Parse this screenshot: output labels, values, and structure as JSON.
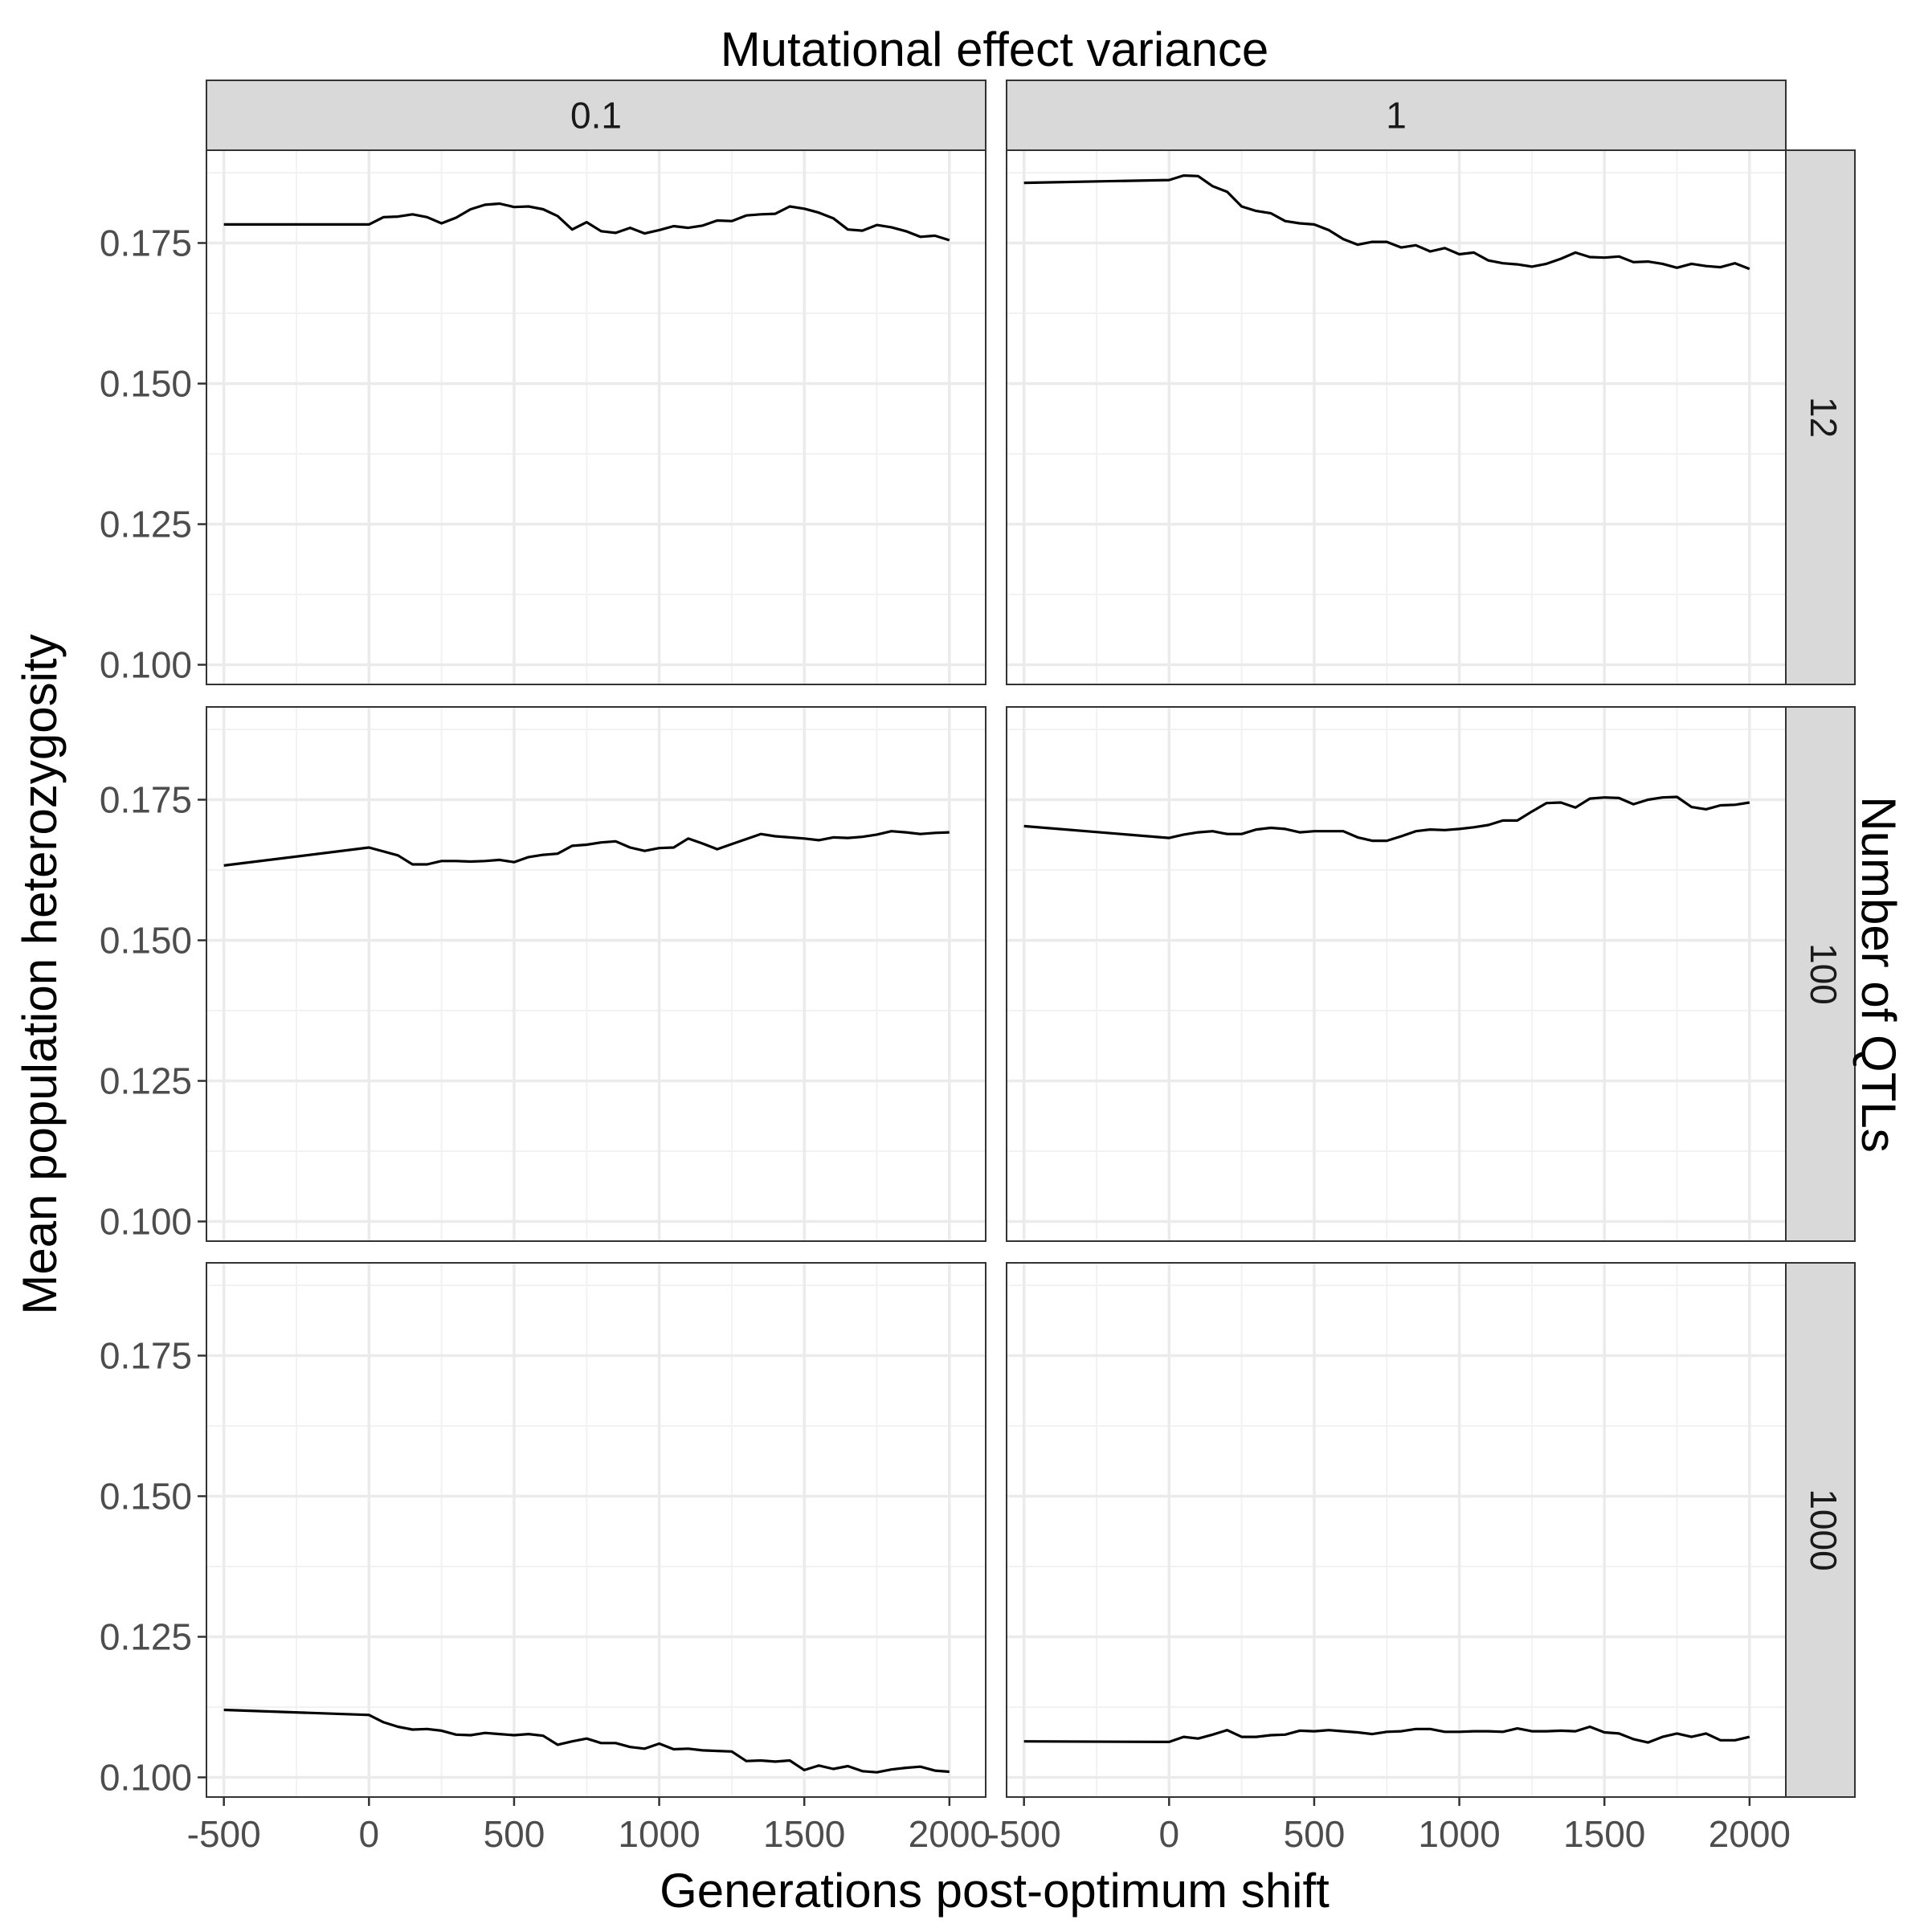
{
  "chart_data": {
    "type": "line",
    "title": "",
    "col_facet_title": "Mutational effect variance",
    "row_facet_title": "Number of QTLs",
    "xlabel": "Generations post-optimum shift",
    "ylabel": "Mean population heterozygosity",
    "col_labels": [
      "0.1",
      "1"
    ],
    "row_labels": [
      "12",
      "100",
      "1000"
    ],
    "xlim": [
      -560,
      2125
    ],
    "ylim": [
      0.0965,
      0.1915
    ],
    "x_ticks": [
      -500,
      0,
      500,
      1000,
      1500,
      2000
    ],
    "x_tick_labels": [
      "-500",
      "0",
      "500",
      "1000",
      "1500",
      "2000"
    ],
    "y_ticks": [
      0.1,
      0.125,
      0.15,
      0.175
    ],
    "y_tick_labels": [
      "0.100",
      "0.125",
      "0.150",
      "0.175"
    ],
    "grid": true,
    "line_color": "#000000",
    "panels": [
      {
        "row": 0,
        "col": 0,
        "x": [
          -500,
          0,
          50,
          100,
          150,
          200,
          250,
          300,
          350,
          400,
          450,
          500,
          550,
          600,
          650,
          700,
          750,
          800,
          850,
          900,
          950,
          1000,
          1050,
          1100,
          1150,
          1200,
          1250,
          1300,
          1350,
          1400,
          1450,
          1500,
          1550,
          1600,
          1650,
          1700,
          1750,
          1800,
          1850,
          1900,
          1950,
          2000
        ],
        "y": [
          0.1783,
          0.1783,
          0.1796,
          0.1797,
          0.1801,
          0.1796,
          0.1785,
          0.1795,
          0.181,
          0.1818,
          0.182,
          0.1814,
          0.1815,
          0.181,
          0.1798,
          0.1774,
          0.1787,
          0.1771,
          0.1768,
          0.1777,
          0.1767,
          0.1773,
          0.178,
          0.1777,
          0.1781,
          0.179,
          0.1789,
          0.1799,
          0.1801,
          0.1802,
          0.1815,
          0.1811,
          0.1804,
          0.1794,
          0.1774,
          0.1772,
          0.1782,
          0.1778,
          0.1771,
          0.1761,
          0.1763,
          0.1755
        ]
      },
      {
        "row": 0,
        "col": 1,
        "x": [
          -500,
          0,
          50,
          100,
          150,
          200,
          250,
          300,
          350,
          400,
          450,
          500,
          550,
          600,
          650,
          700,
          750,
          800,
          850,
          900,
          950,
          1000,
          1050,
          1100,
          1150,
          1200,
          1250,
          1300,
          1350,
          1400,
          1450,
          1500,
          1550,
          1600,
          1650,
          1700,
          1750,
          1800,
          1850,
          1900,
          1950,
          2000
        ],
        "y": [
          0.1857,
          0.1862,
          0.187,
          0.1869,
          0.1851,
          0.1841,
          0.1815,
          0.1807,
          0.1803,
          0.1789,
          0.1785,
          0.1783,
          0.1773,
          0.1757,
          0.1747,
          0.1752,
          0.1752,
          0.1742,
          0.1746,
          0.1735,
          0.1741,
          0.173,
          0.1733,
          0.1719,
          0.1714,
          0.1712,
          0.1708,
          0.1713,
          0.1722,
          0.1733,
          0.1725,
          0.1724,
          0.1726,
          0.1716,
          0.1717,
          0.1713,
          0.1706,
          0.1713,
          0.1709,
          0.1707,
          0.1714,
          0.1704
        ]
      },
      {
        "row": 1,
        "col": 0,
        "x": [
          -500,
          0,
          100,
          150,
          200,
          250,
          300,
          350,
          400,
          450,
          500,
          550,
          600,
          650,
          700,
          750,
          800,
          850,
          900,
          950,
          1000,
          1050,
          1100,
          1150,
          1200,
          1250,
          1300,
          1350,
          1400,
          1450,
          1500,
          1550,
          1600,
          1650,
          1700,
          1750,
          1800,
          1850,
          1900,
          1950,
          2000
        ],
        "y": [
          0.1633,
          0.1665,
          0.1651,
          0.1635,
          0.1635,
          0.1641,
          0.1641,
          0.164,
          0.1641,
          0.1643,
          0.1639,
          0.1648,
          0.1652,
          0.1654,
          0.1668,
          0.167,
          0.1674,
          0.1676,
          0.1665,
          0.1659,
          0.1664,
          0.1665,
          0.1681,
          0.1672,
          0.1662,
          0.1671,
          0.168,
          0.1689,
          0.1685,
          0.1683,
          0.1681,
          0.1678,
          0.1683,
          0.1682,
          0.1684,
          0.1688,
          0.1694,
          0.1692,
          0.1689,
          0.1691,
          0.1692
        ]
      },
      {
        "row": 1,
        "col": 1,
        "x": [
          -500,
          0,
          50,
          100,
          150,
          200,
          250,
          300,
          350,
          400,
          450,
          500,
          550,
          600,
          650,
          700,
          750,
          800,
          850,
          900,
          950,
          1000,
          1050,
          1100,
          1150,
          1200,
          1250,
          1300,
          1350,
          1400,
          1450,
          1500,
          1550,
          1600,
          1650,
          1700,
          1750,
          1800,
          1850,
          1900,
          1950,
          2000
        ],
        "y": [
          0.1703,
          0.1682,
          0.1688,
          0.1692,
          0.1694,
          0.1689,
          0.1689,
          0.1697,
          0.17,
          0.1698,
          0.1692,
          0.1694,
          0.1694,
          0.1694,
          0.1683,
          0.1677,
          0.1677,
          0.1685,
          0.1694,
          0.1697,
          0.1696,
          0.1698,
          0.1701,
          0.1705,
          0.1713,
          0.1713,
          0.1729,
          0.1744,
          0.1745,
          0.1736,
          0.1752,
          0.1754,
          0.1753,
          0.1742,
          0.175,
          0.1754,
          0.1755,
          0.1737,
          0.1733,
          0.174,
          0.1741,
          0.1745
        ]
      },
      {
        "row": 2,
        "col": 0,
        "x": [
          -500,
          0,
          50,
          100,
          150,
          200,
          250,
          300,
          350,
          400,
          450,
          500,
          550,
          600,
          650,
          700,
          750,
          800,
          850,
          900,
          950,
          1000,
          1050,
          1100,
          1150,
          1200,
          1250,
          1300,
          1350,
          1400,
          1450,
          1500,
          1550,
          1600,
          1650,
          1700,
          1750,
          1800,
          1850,
          1900,
          1950,
          2000
        ],
        "y": [
          0.112,
          0.1111,
          0.1098,
          0.109,
          0.1085,
          0.1086,
          0.1083,
          0.1076,
          0.1075,
          0.1079,
          0.1077,
          0.1075,
          0.1077,
          0.1074,
          0.1058,
          0.1064,
          0.1069,
          0.1061,
          0.1061,
          0.1054,
          0.1051,
          0.106,
          0.105,
          0.1051,
          0.1048,
          0.1047,
          0.1046,
          0.1029,
          0.103,
          0.1028,
          0.103,
          0.1013,
          0.1021,
          0.1015,
          0.102,
          0.1011,
          0.1009,
          0.1014,
          0.1017,
          0.1019,
          0.1012,
          0.101
        ]
      },
      {
        "row": 2,
        "col": 1,
        "x": [
          -500,
          0,
          50,
          100,
          150,
          200,
          250,
          300,
          350,
          400,
          450,
          500,
          550,
          600,
          650,
          700,
          750,
          800,
          850,
          900,
          950,
          1000,
          1050,
          1100,
          1150,
          1200,
          1250,
          1300,
          1350,
          1400,
          1450,
          1500,
          1550,
          1600,
          1650,
          1700,
          1750,
          1800,
          1850,
          1900,
          1950,
          2000
        ],
        "y": [
          0.1064,
          0.1063,
          0.1072,
          0.1069,
          0.1076,
          0.1084,
          0.1072,
          0.1072,
          0.1075,
          0.1076,
          0.1083,
          0.1082,
          0.1084,
          0.1082,
          0.108,
          0.1077,
          0.1081,
          0.1082,
          0.1086,
          0.1086,
          0.1081,
          0.1081,
          0.1082,
          0.1082,
          0.1081,
          0.1087,
          0.1082,
          0.1082,
          0.1083,
          0.1082,
          0.109,
          0.108,
          0.1078,
          0.1068,
          0.1062,
          0.1072,
          0.1078,
          0.1072,
          0.1078,
          0.1066,
          0.1066,
          0.1072
        ]
      }
    ]
  }
}
